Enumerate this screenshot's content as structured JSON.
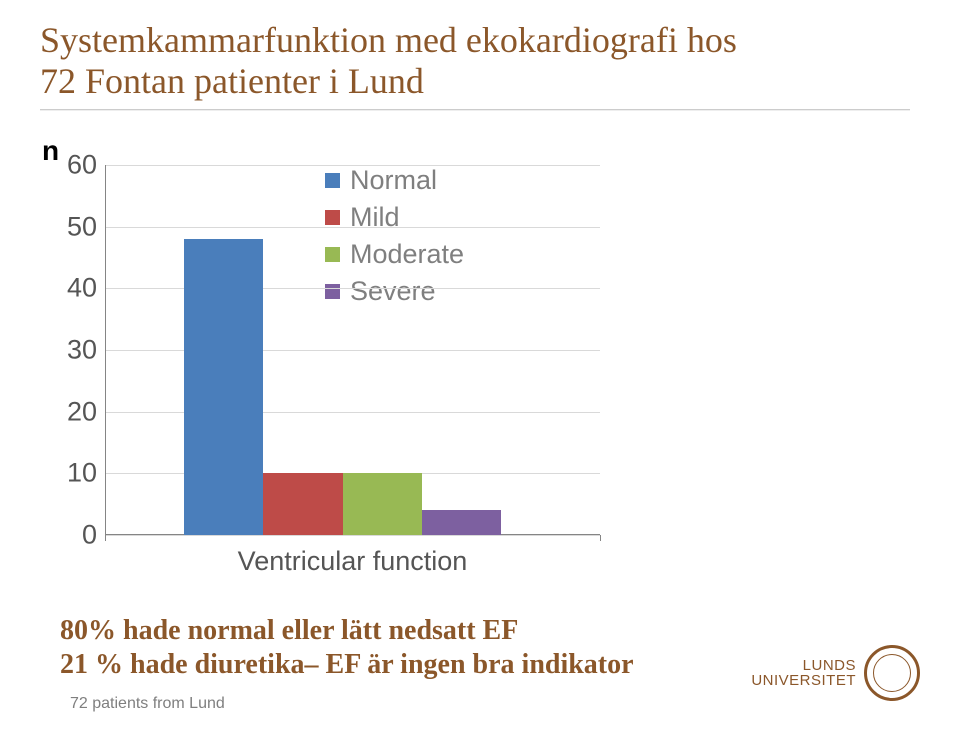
{
  "title_line1": "Systemkammarfunktion med ekokardiografi hos",
  "title_line2": "72 Fontan patienter i Lund",
  "n_label": "n",
  "chart": {
    "type": "bar",
    "ylim": [
      0,
      60
    ],
    "ytick_step": 10,
    "yticks": [
      0,
      10,
      20,
      30,
      40,
      50,
      60
    ],
    "x_title": "Ventricular function",
    "background_color": "#ffffff",
    "grid_color": "#d9d9d9",
    "axis_color": "#858585",
    "tick_label_color": "#555555",
    "tick_fontsize": 27,
    "bar_group_left_pct": 16,
    "bar_width_pct": 16,
    "bar_gap_pct": 0,
    "series": [
      {
        "label": "Normal",
        "value": 48,
        "color": "#4a7ebb"
      },
      {
        "label": "Mild",
        "value": 10,
        "color": "#be4b48"
      },
      {
        "label": "Moderate",
        "value": 10,
        "color": "#98b954"
      },
      {
        "label": "Severe",
        "value": 4,
        "color": "#7d60a0"
      }
    ]
  },
  "legend": {
    "label_color": "#7f7f7f",
    "label_fontsize": 27,
    "swatch_size": 15
  },
  "conclusion_line1": "80%  hade normal eller lätt nedsatt EF",
  "conclusion_line2": "21 % hade diuretika– EF är ingen bra indikator",
  "footnote": "72 patients from Lund",
  "logo": {
    "line1": "LUNDS",
    "line2": "UNIVERSITET",
    "color": "#8b572a"
  }
}
